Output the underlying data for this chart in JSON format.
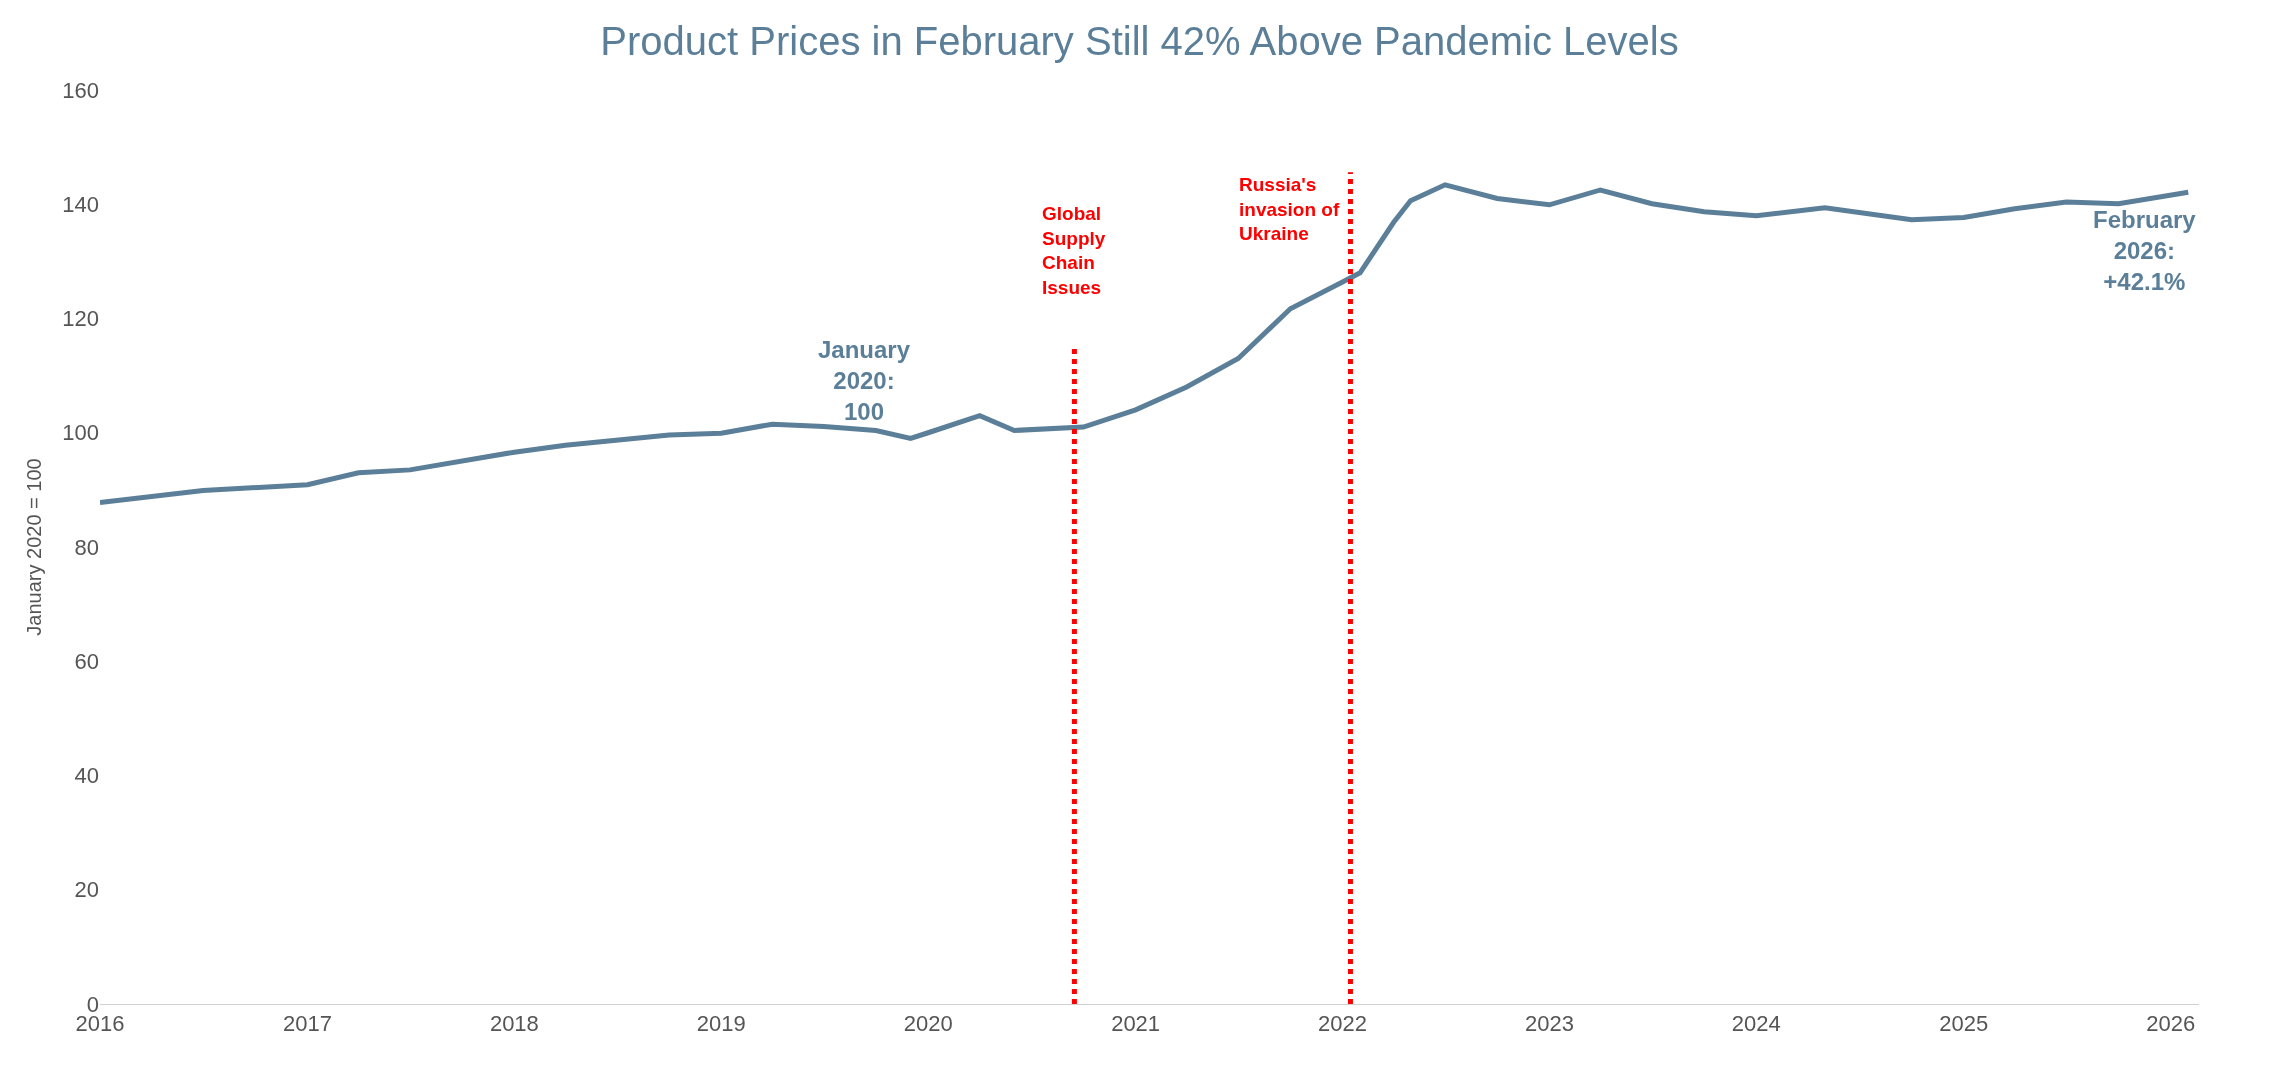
{
  "chart_data": {
    "type": "line",
    "title": "Product Prices in February Still 42% Above Pandemic Levels",
    "ylabel": "January 2020 = 100",
    "x": [
      "2016-01",
      "2016-07",
      "2017-01",
      "2017-04",
      "2017-07",
      "2018-01",
      "2018-04",
      "2018-10",
      "2019-01",
      "2019-04",
      "2019-07",
      "2019-10",
      "2019-12",
      "2020-01",
      "2020-04",
      "2020-06",
      "2020-10",
      "2021-01",
      "2021-04",
      "2021-07",
      "2021-10",
      "2022-01",
      "2022-02",
      "2022-04",
      "2022-05",
      "2022-07",
      "2022-10",
      "2023-01",
      "2023-04",
      "2023-07",
      "2023-10",
      "2024-01",
      "2024-05",
      "2024-10",
      "2025-01",
      "2025-04",
      "2025-07",
      "2025-10",
      "2026-02"
    ],
    "series": [
      {
        "color": "#5b7f99",
        "values": [
          87.8,
          89.9,
          90.9,
          93.0,
          93.5,
          96.6,
          97.8,
          99.6,
          99.9,
          101.5,
          101.1,
          100.4,
          99.0,
          100,
          103,
          100.4,
          101,
          104,
          108,
          113,
          121.7,
          126.4,
          128,
          136.8,
          140.6,
          143.4,
          141,
          139.9,
          142.5,
          140.1,
          138.7,
          138,
          139.4,
          137.3,
          137.7,
          139.2,
          140.4,
          140.1,
          142.1
        ]
      }
    ],
    "xlim": [
      "2016-01-01",
      "2026-02-20"
    ],
    "xticks": [
      {
        "value": "2016",
        "label": "2016"
      },
      {
        "value": "2017",
        "label": "2017"
      },
      {
        "value": "2018",
        "label": "2018"
      },
      {
        "value": "2019",
        "label": "2019"
      },
      {
        "value": "2020",
        "label": "2020"
      },
      {
        "value": "2021",
        "label": "2021"
      },
      {
        "value": "2022",
        "label": "2022"
      },
      {
        "value": "2023",
        "label": "2023"
      },
      {
        "value": "2024",
        "label": "2024"
      },
      {
        "value": "2025",
        "label": "2025"
      },
      {
        "value": "2026",
        "label": "2026"
      }
    ],
    "ylim": [
      0,
      160
    ],
    "yticks": [
      0,
      20,
      40,
      60,
      80,
      100,
      120,
      140,
      160
    ],
    "line_style": "solid",
    "ref_lines": [
      {
        "axis": "x",
        "value": "2020-09-15",
        "label": "Global\nSupply\nChain\nIssues",
        "color": "#ff0000",
        "line_style": "dotted"
      },
      {
        "axis": "x",
        "value": "2022-01-15",
        "label": "Russia's\ninvasion of\nUkraine",
        "color": "#ff0000",
        "line_style": "dotted"
      }
    ],
    "annotations": [
      {
        "text": "January\n2020:\n100",
        "x": "2020-01",
        "y": 100
      },
      {
        "text": "February\n2026:\n+42.1%",
        "x": "2026-02",
        "y": 142.1
      }
    ]
  }
}
